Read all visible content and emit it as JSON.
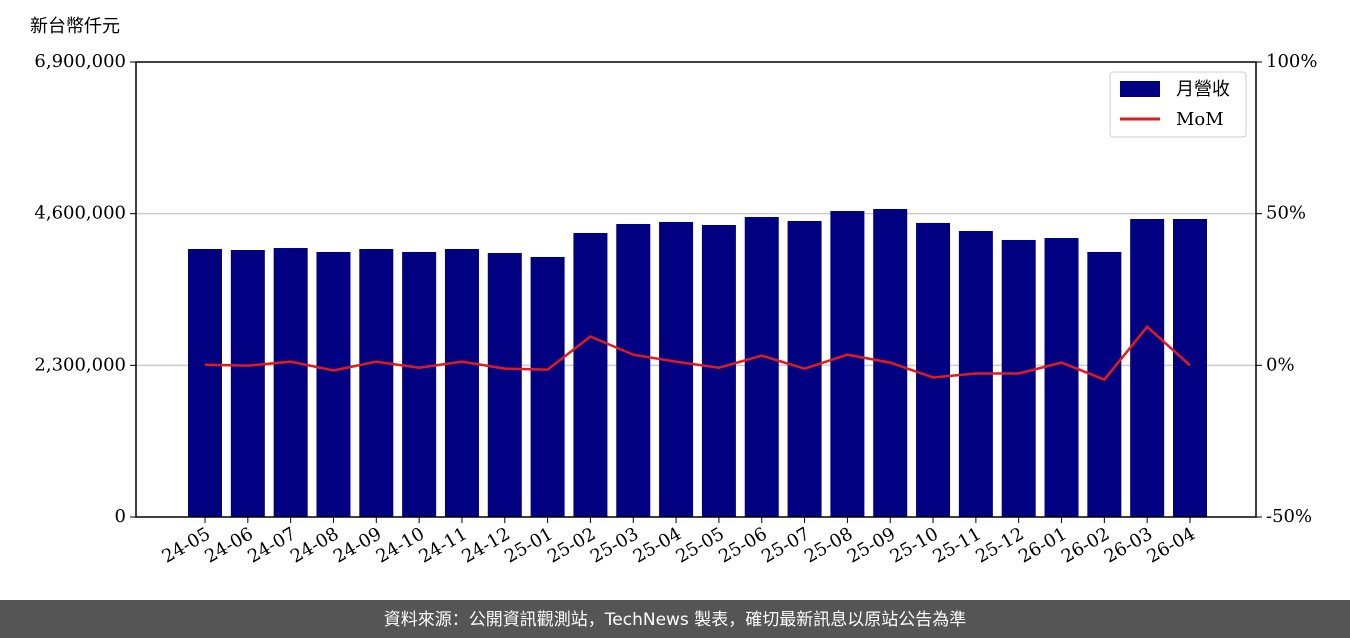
{
  "chart_data": {
    "type": "bar-line",
    "y_axis_label": "新台幣仟元",
    "categories": [
      "24-05",
      "24-06",
      "24-07",
      "24-08",
      "24-09",
      "24-10",
      "24-11",
      "24-12",
      "25-01",
      "25-02",
      "25-03",
      "25-04",
      "25-05",
      "25-06",
      "25-07",
      "25-08",
      "25-09",
      "25-10",
      "25-11",
      "25-12",
      "26-01",
      "26-02",
      "26-03",
      "26-04"
    ],
    "series": [
      {
        "name": "月營收",
        "color": "#000080",
        "values": [
          4064000,
          4049000,
          4079000,
          4019000,
          4064000,
          4019000,
          4064000,
          4003000,
          3943000,
          4307000,
          4443000,
          4474000,
          4428000,
          4549000,
          4489000,
          4640000,
          4671000,
          4459000,
          4337000,
          4201000,
          4231000,
          4019000,
          4519000,
          4519000
        ]
      },
      {
        "name": "MoM",
        "color": "#e31a1c",
        "axis": "y2",
        "values": [
          0.2,
          -0.1,
          1.2,
          -1.7,
          1.2,
          -0.8,
          1.2,
          -1.1,
          -1.4,
          9.5,
          3.5,
          1.2,
          -0.8,
          3.2,
          -1.1,
          3.5,
          0.9,
          -4.0,
          -2.7,
          -2.7,
          0.9,
          -4.7,
          12.7,
          0.0
        ]
      }
    ],
    "ylim": [
      0,
      6900000
    ],
    "yticks": [
      0,
      {
        "value": 2300000,
        "label": "2,300,000"
      },
      {
        "value": 4600000,
        "label": "4,600,000"
      },
      {
        "value": 6900000,
        "label": "6,900,000"
      }
    ],
    "y2lim": [
      -50,
      100
    ],
    "y2ticks": [
      {
        "value": -50,
        "label": "-50%"
      },
      {
        "value": 0,
        "label": "0%"
      },
      {
        "value": 50,
        "label": "50%"
      },
      {
        "value": 100,
        "label": "100%"
      }
    ],
    "grid": true,
    "legend": "upper right",
    "footer": "資料來源：公開資訊觀測站，TechNews 製表，確切最新訊息以原站公告為準"
  }
}
